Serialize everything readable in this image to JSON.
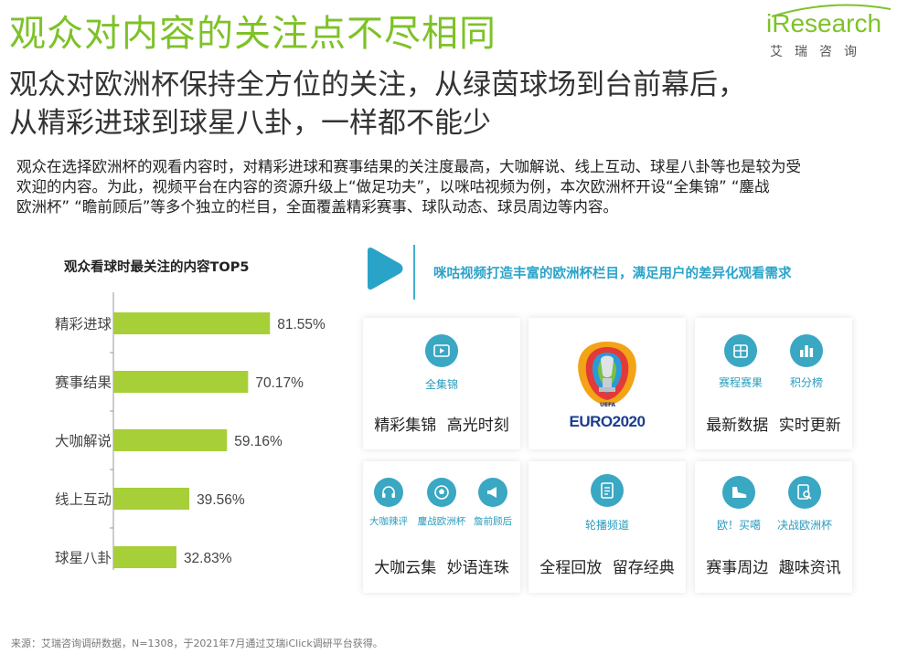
{
  "header": {
    "title": "观众对内容的关注点不尽相同",
    "logo_text": "iResearch",
    "logo_cn": "艾瑞咨询",
    "subtitle_line1": "观众对欧洲杯保持全方位的关注，从绿茵球场到台前幕后，",
    "subtitle_line2": "从精彩进球到球星八卦，一样都不能少"
  },
  "description": {
    "line1": "观众在选择欧洲杯的观看内容时，对精彩进球和赛事结果的关注度最高，大咖解说、线上互动、球星八卦等也是较为受",
    "line2": "欢迎的内容。为此，视频平台在内容的资源升级上“做足功夫”，以咪咕视频为例，本次欧洲杯开设“全集锦” “鏖战",
    "line3": "欧洲杯” “瞻前顾后”等多个独立的栏目，全面覆盖精彩赛事、球队动态、球员周边等内容。"
  },
  "chart_data": {
    "type": "bar",
    "orientation": "horizontal",
    "title": "观众看球时最关注的内容TOP5",
    "categories": [
      "精彩进球",
      "赛事结果",
      "大咖解说",
      "线上互动",
      "球星八卦"
    ],
    "values": [
      81.55,
      70.17,
      59.16,
      39.56,
      32.83
    ],
    "value_labels": [
      "81.55%",
      "70.17%",
      "59.16%",
      "39.56%",
      "32.83%"
    ],
    "xlim": [
      0,
      100
    ],
    "bar_color": "#a6cf38",
    "grid": false,
    "legend": "none"
  },
  "promo": {
    "text": "咪咕视频打造丰富的欧洲杯栏目，满足用户的差异化观看需求",
    "accent": "#2aa3c9"
  },
  "cards": {
    "c1": {
      "icon_label": "全集锦",
      "caption": "精彩集锦 高光时刻"
    },
    "c2": {
      "logo_text": "EURO2020",
      "logo_small": "UEFA"
    },
    "c3": {
      "icon1_label": "赛程赛果",
      "icon2_label": "积分榜",
      "caption": "最新数据 实时更新"
    },
    "c4": {
      "icon1_label": "大咖辣评",
      "icon2_label": "鏖战欧洲杯",
      "icon3_label": "詹前顾后",
      "caption": "大咖云集 妙语连珠"
    },
    "c5": {
      "icon_label": "轮播频道",
      "caption": "全程回放 留存经典"
    },
    "c6": {
      "icon1_label": "欧！买噶",
      "icon2_label": "决战欧洲杯",
      "caption": "赛事周边 趣味资讯"
    }
  },
  "footnote": "来源：艾瑞咨询调研数据，N=1308，于2021年7月通过艾瑞iClick调研平台获得。"
}
